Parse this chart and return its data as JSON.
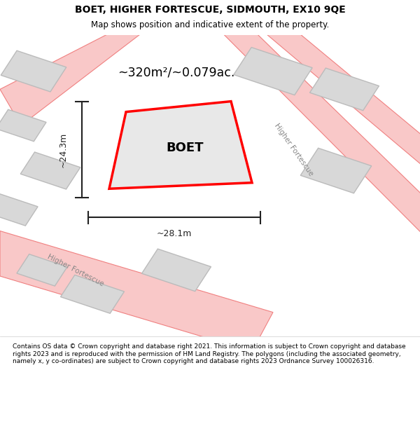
{
  "title": "BOET, HIGHER FORTESCUE, SIDMOUTH, EX10 9QE",
  "subtitle": "Map shows position and indicative extent of the property.",
  "area_text": "~320m²/~0.079ac.",
  "width_text": "~28.1m",
  "height_text": "~24.3m",
  "property_label": "BOET",
  "footer": "Contains OS data © Crown copyright and database right 2021. This information is subject to Crown copyright and database rights 2023 and is reproduced with the permission of HM Land Registry. The polygons (including the associated geometry, namely x, y co-ordinates) are subject to Crown copyright and database rights 2023 Ordnance Survey 100026316.",
  "bg_color": "#f5f5f5",
  "map_bg": "#f0f0f0",
  "road_color": "#f9c8c8",
  "road_line_color": "#f08080",
  "building_fill": "#d8d8d8",
  "building_edge": "#bbbbbb",
  "property_fill": "#e8e8e8",
  "property_outline": "#ff0000",
  "dim_color": "#222222",
  "label_color": "#888888"
}
